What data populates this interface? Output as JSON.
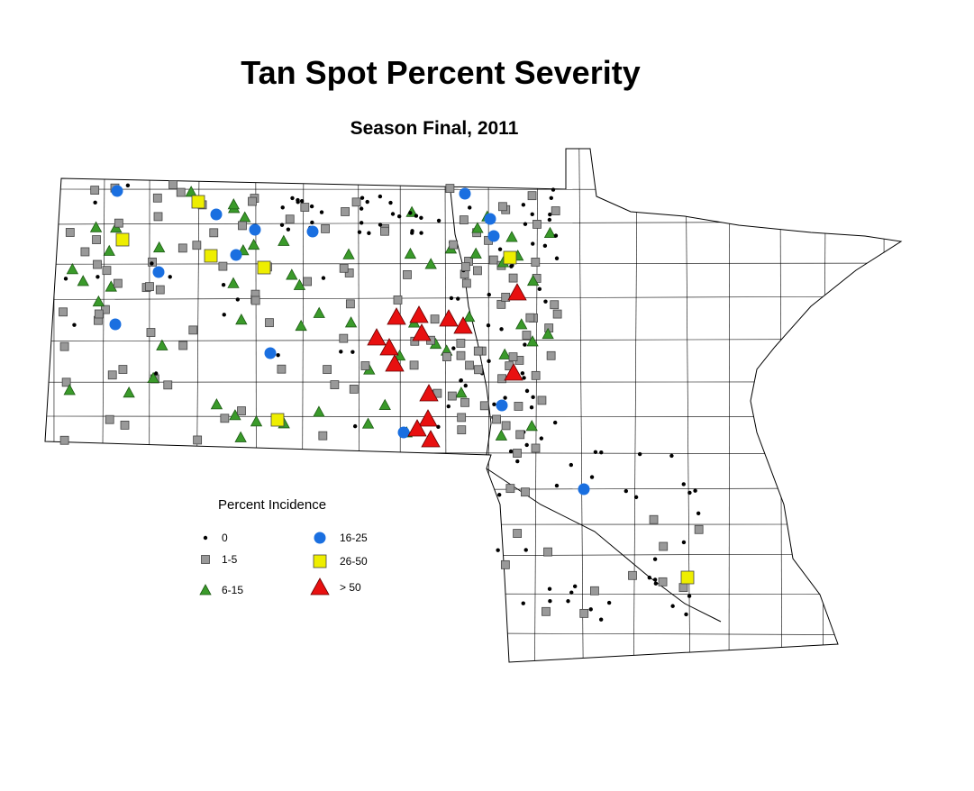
{
  "title": "Tan Spot Percent Severity",
  "subtitle": "Season Final, 2011",
  "legend": {
    "title": "Percent Incidence",
    "items": [
      "0",
      "1-5",
      "6-15",
      "16-25",
      "26-50",
      "> 50"
    ]
  }
}
